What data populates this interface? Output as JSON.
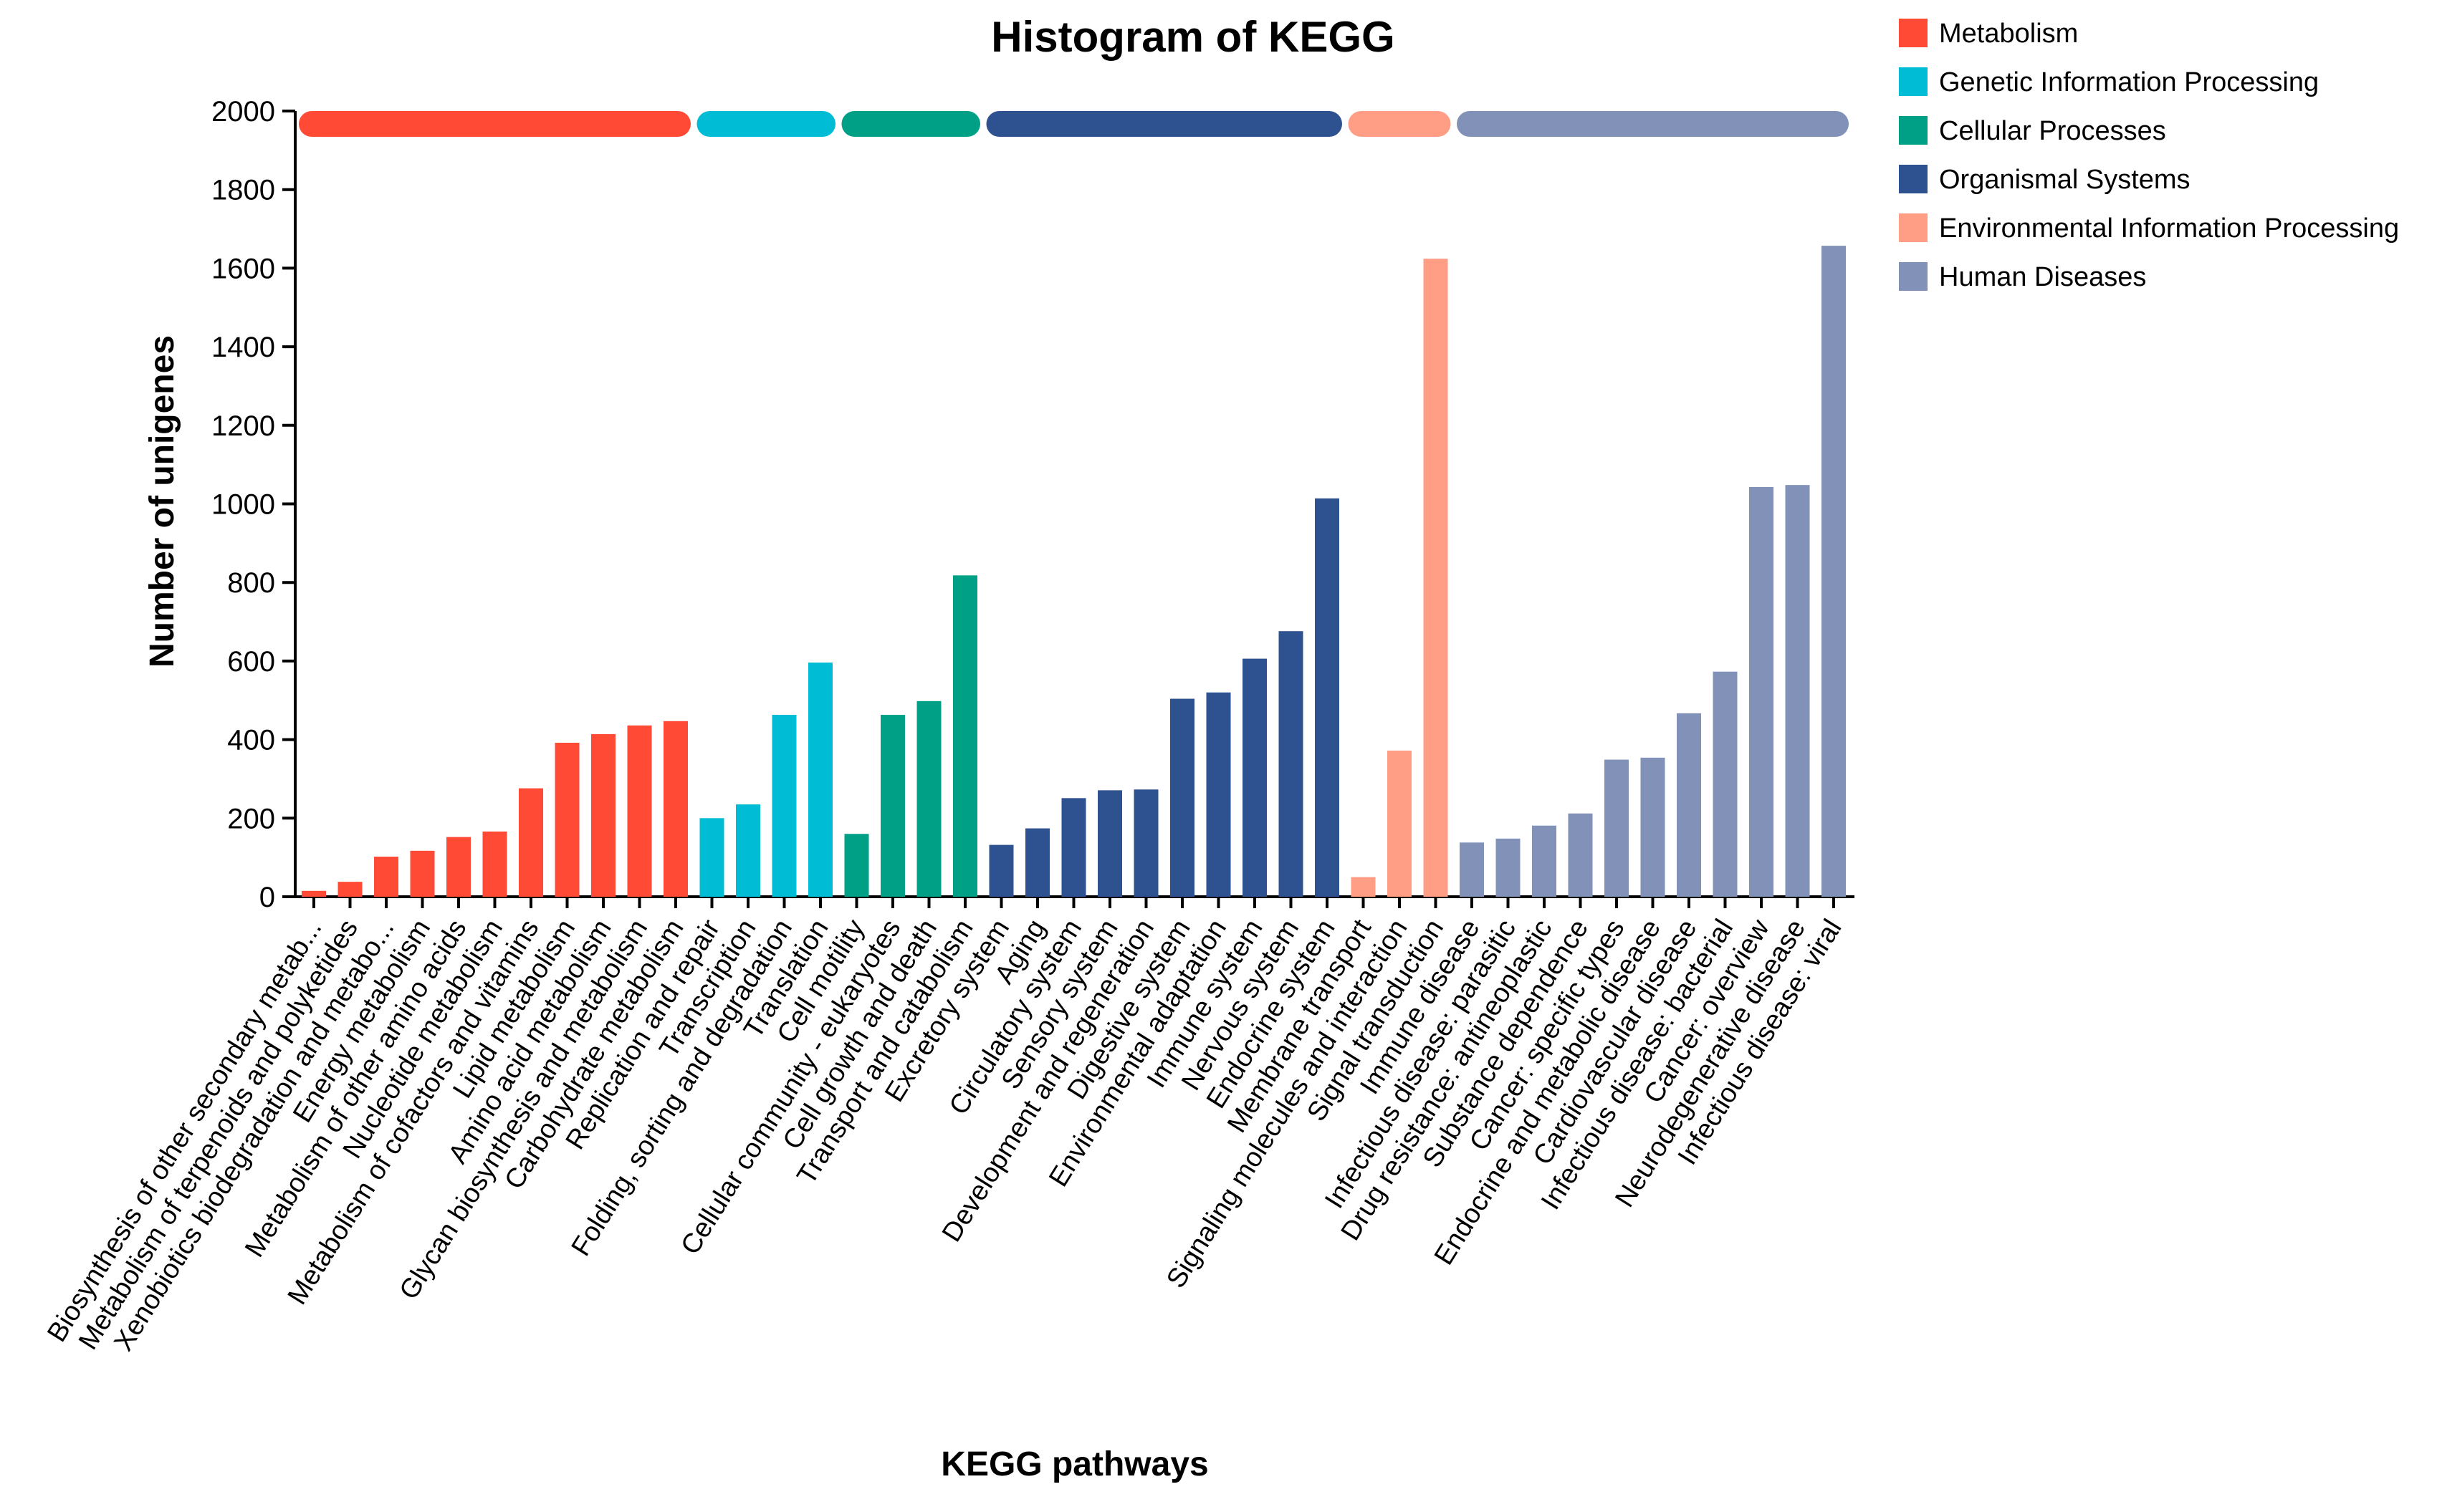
{
  "chart_data": {
    "type": "bar",
    "title": "Histogram of KEGG",
    "xlabel": "KEGG pathways",
    "ylabel": "Number of unigenes",
    "ylim": [
      0,
      2000
    ],
    "yticks": [
      0,
      200,
      400,
      600,
      800,
      1000,
      1200,
      1400,
      1600,
      1800,
      2000
    ],
    "legend_position": "top-right",
    "groups": [
      {
        "name": "Metabolism",
        "color": "#FF4A36"
      },
      {
        "name": "Genetic Information Processing",
        "color": "#00BCD4"
      },
      {
        "name": "Cellular Processes",
        "color": "#00A087"
      },
      {
        "name": "Organismal Systems",
        "color": "#2E5290"
      },
      {
        "name": "Environmental Information Processing",
        "color": "#FF9E84"
      },
      {
        "name": "Human Diseases",
        "color": "#8191B8"
      }
    ],
    "bars": [
      {
        "label": "Biosynthesis of other secondary metab...",
        "value": 15,
        "group": 0
      },
      {
        "label": "Metabolism of terpenoids and polyketides",
        "value": 38,
        "group": 0
      },
      {
        "label": "Xenobiotics biodegradation and metabo...",
        "value": 102,
        "group": 0
      },
      {
        "label": "Energy metabolism",
        "value": 117,
        "group": 0
      },
      {
        "label": "Metabolism of other amino acids",
        "value": 152,
        "group": 0
      },
      {
        "label": "Nucleotide metabolism",
        "value": 166,
        "group": 0
      },
      {
        "label": "Metabolism of cofactors and vitamins",
        "value": 276,
        "group": 0
      },
      {
        "label": "Lipid metabolism",
        "value": 392,
        "group": 0
      },
      {
        "label": "Amino acid metabolism",
        "value": 414,
        "group": 0
      },
      {
        "label": "Glycan biosynthesis and metabolism",
        "value": 436,
        "group": 0
      },
      {
        "label": "Carbohydrate metabolism",
        "value": 447,
        "group": 0
      },
      {
        "label": "Replication and repair",
        "value": 200,
        "group": 1
      },
      {
        "label": "Transcription",
        "value": 235,
        "group": 1
      },
      {
        "label": "Folding, sorting and degradation",
        "value": 463,
        "group": 1
      },
      {
        "label": "Translation",
        "value": 596,
        "group": 1
      },
      {
        "label": "Cell motility",
        "value": 160,
        "group": 2
      },
      {
        "label": "Cellular community - eukaryotes",
        "value": 463,
        "group": 2
      },
      {
        "label": "Cell growth and death",
        "value": 498,
        "group": 2
      },
      {
        "label": "Transport and catabolism",
        "value": 818,
        "group": 2
      },
      {
        "label": "Excretory system",
        "value": 132,
        "group": 3
      },
      {
        "label": "Aging",
        "value": 174,
        "group": 3
      },
      {
        "label": "Circulatory system",
        "value": 251,
        "group": 3
      },
      {
        "label": "Sensory system",
        "value": 271,
        "group": 3
      },
      {
        "label": "Development and regeneration",
        "value": 273,
        "group": 3
      },
      {
        "label": "Digestive system",
        "value": 504,
        "group": 3
      },
      {
        "label": "Environmental adaptation",
        "value": 520,
        "group": 3
      },
      {
        "label": "Immune system",
        "value": 606,
        "group": 3
      },
      {
        "label": "Nervous system",
        "value": 676,
        "group": 3
      },
      {
        "label": "Endocrine system",
        "value": 1014,
        "group": 3
      },
      {
        "label": "Membrane transport",
        "value": 50,
        "group": 4
      },
      {
        "label": "Signaling molecules and interaction",
        "value": 372,
        "group": 4
      },
      {
        "label": "Signal transduction",
        "value": 1624,
        "group": 4
      },
      {
        "label": "Immune disease",
        "value": 138,
        "group": 5
      },
      {
        "label": "Infectious disease: parasitic",
        "value": 148,
        "group": 5
      },
      {
        "label": "Drug resistance: antineoplastic",
        "value": 181,
        "group": 5
      },
      {
        "label": "Substance dependence",
        "value": 212,
        "group": 5
      },
      {
        "label": "Cancer: specific types",
        "value": 349,
        "group": 5
      },
      {
        "label": "Endocrine and metabolic disease",
        "value": 354,
        "group": 5
      },
      {
        "label": "Cardiovascular disease",
        "value": 467,
        "group": 5
      },
      {
        "label": "Infectious disease: bacterial",
        "value": 573,
        "group": 5
      },
      {
        "label": "Cancer: overview",
        "value": 1043,
        "group": 5
      },
      {
        "label": "Neurodegenerative disease",
        "value": 1048,
        "group": 5
      },
      {
        "label": "Infectious disease: viral",
        "value": 1657,
        "group": 5
      }
    ]
  }
}
